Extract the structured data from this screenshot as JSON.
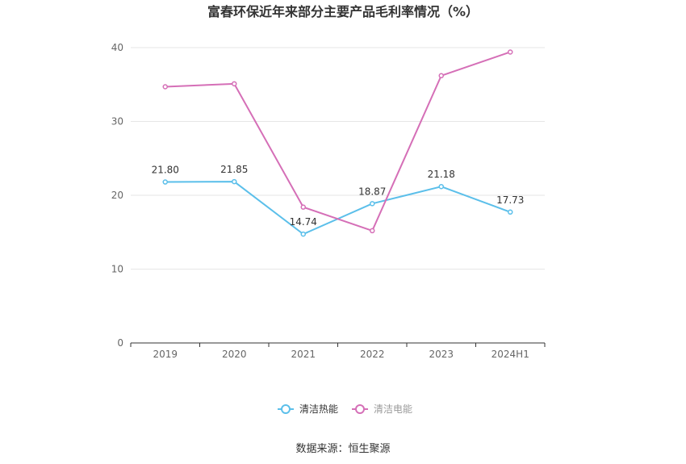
{
  "chart_data": {
    "type": "line",
    "title": "富春环保近年来部分主要产品毛利率情况（%）",
    "categories": [
      "2019",
      "2020",
      "2021",
      "2022",
      "2023",
      "2024H1"
    ],
    "ylim": [
      0,
      40
    ],
    "yticks": [
      0,
      10,
      20,
      30,
      40
    ],
    "grid": true,
    "legend_position": "bottom",
    "series": [
      {
        "name": "清洁热能",
        "color": "#5bbfea",
        "values": [
          21.8,
          21.85,
          14.74,
          18.87,
          21.18,
          17.73
        ],
        "labels": [
          "21.80",
          "21.85",
          "14.74",
          "18.87",
          "21.18",
          "17.73"
        ]
      },
      {
        "name": "清洁电能",
        "color": "#d56fb7",
        "values": [
          34.7,
          35.1,
          18.4,
          15.2,
          36.2,
          39.4
        ]
      }
    ]
  },
  "source_text": "数据来源：恒生聚源"
}
